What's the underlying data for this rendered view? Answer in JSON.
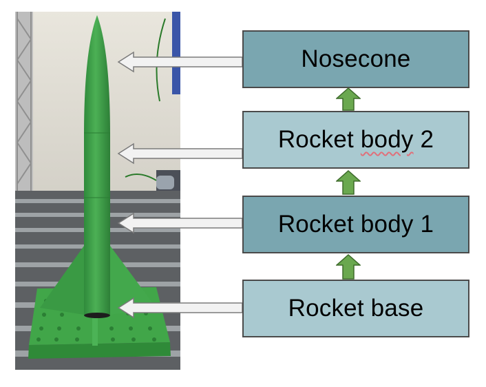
{
  "diagram": {
    "blocks": [
      {
        "id": "nosecone",
        "label": "Nosecone",
        "style": "dark"
      },
      {
        "id": "rocket-body-2",
        "label_parts": [
          "Rocket ",
          "body",
          " 2"
        ],
        "style": "light"
      },
      {
        "id": "rocket-body-1",
        "label": "Rocket body 1",
        "style": "dark"
      },
      {
        "id": "rocket-base",
        "label": "Rocket base",
        "style": "light"
      }
    ],
    "colors": {
      "block_dark": "#7aa6b0",
      "block_light": "#a9c9d0",
      "up_arrow": "#6aa84f",
      "pointer_arrow": "#f2f2f2",
      "rocket_green": "#3fa24a"
    }
  }
}
